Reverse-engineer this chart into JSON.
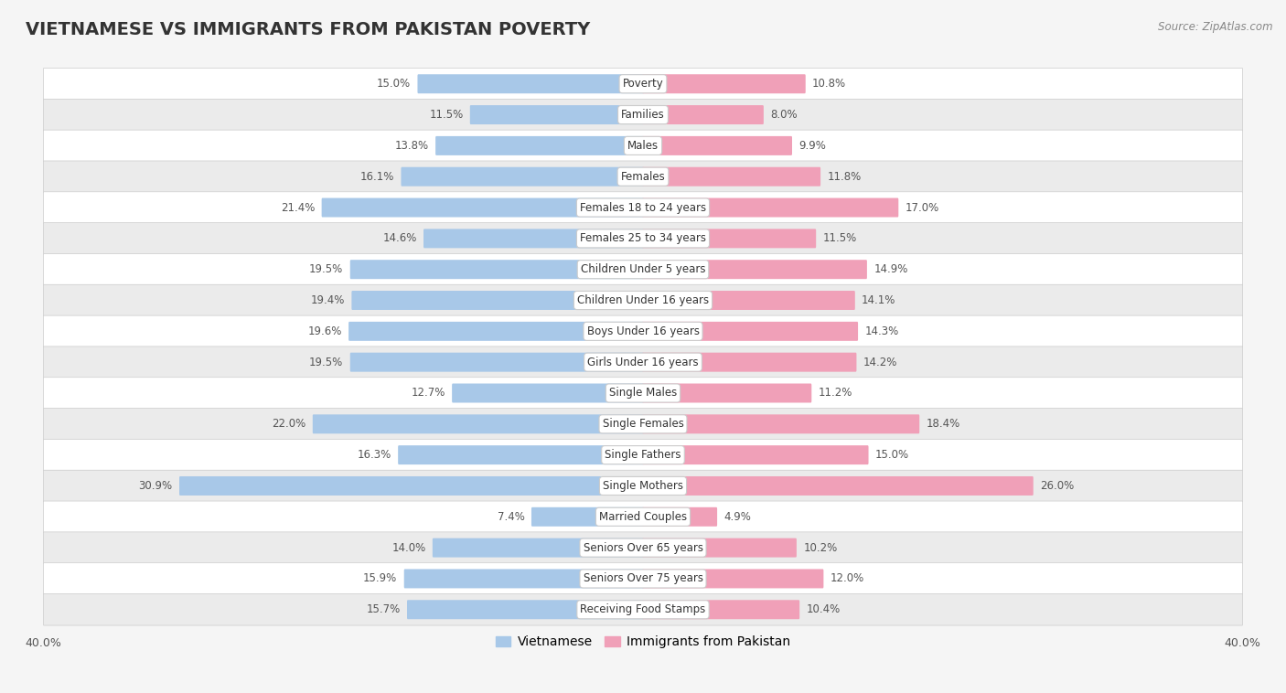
{
  "title": "VIETNAMESE VS IMMIGRANTS FROM PAKISTAN POVERTY",
  "source": "Source: ZipAtlas.com",
  "categories": [
    "Poverty",
    "Families",
    "Males",
    "Females",
    "Females 18 to 24 years",
    "Females 25 to 34 years",
    "Children Under 5 years",
    "Children Under 16 years",
    "Boys Under 16 years",
    "Girls Under 16 years",
    "Single Males",
    "Single Females",
    "Single Fathers",
    "Single Mothers",
    "Married Couples",
    "Seniors Over 65 years",
    "Seniors Over 75 years",
    "Receiving Food Stamps"
  ],
  "vietnamese": [
    15.0,
    11.5,
    13.8,
    16.1,
    21.4,
    14.6,
    19.5,
    19.4,
    19.6,
    19.5,
    12.7,
    22.0,
    16.3,
    30.9,
    7.4,
    14.0,
    15.9,
    15.7
  ],
  "pakistan": [
    10.8,
    8.0,
    9.9,
    11.8,
    17.0,
    11.5,
    14.9,
    14.1,
    14.3,
    14.2,
    11.2,
    18.4,
    15.0,
    26.0,
    4.9,
    10.2,
    12.0,
    10.4
  ],
  "viet_color": "#a8c8e8",
  "pak_color": "#f0a0b8",
  "row_color_even": "#ffffff",
  "row_color_odd": "#ebebeb",
  "bg_color": "#f5f5f5",
  "axis_max": 40.0,
  "title_fontsize": 14,
  "legend_fontsize": 10,
  "bar_label_fontsize": 8.5,
  "category_fontsize": 8.5
}
